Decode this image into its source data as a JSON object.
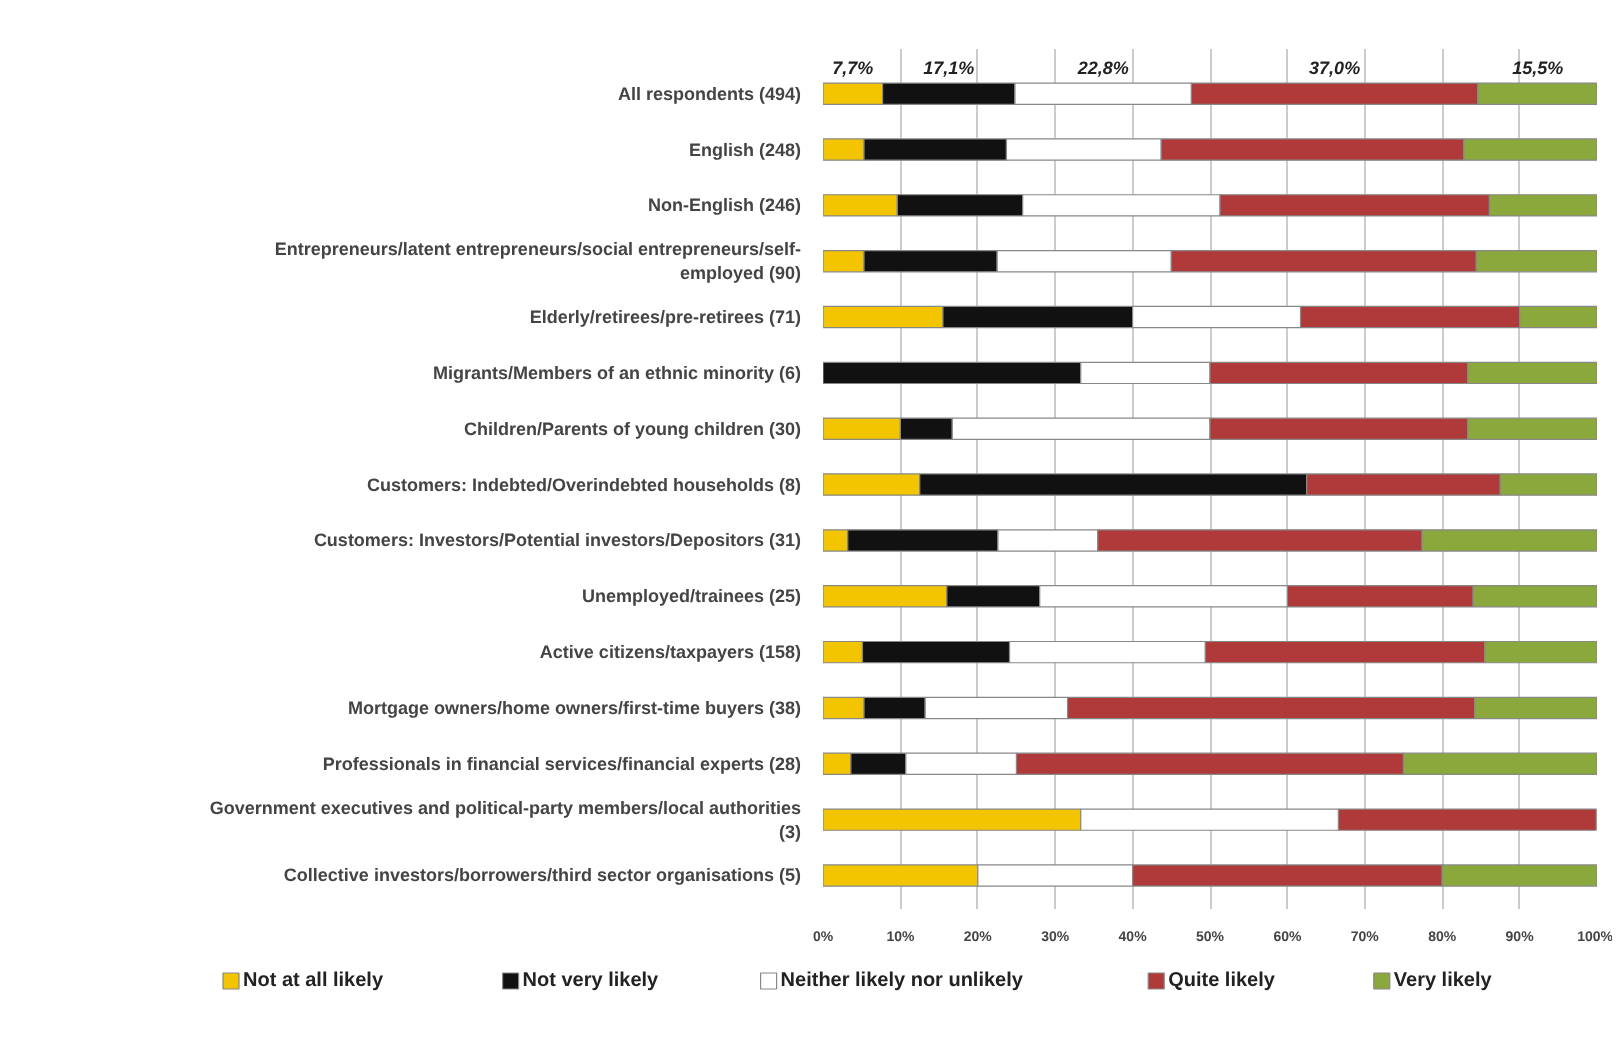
{
  "chart_data": {
    "type": "bar",
    "orientation": "horizontal",
    "stacked": true,
    "categories": [
      "All respondents (494)",
      "English (248)",
      "Non-English (246)",
      "Entrepreneurs/latent entrepreneurs/social entrepreneurs/self-employed (90)",
      "Elderly/retirees/pre-retirees (71)",
      "Migrants/Members of an ethnic minority (6)",
      "Children/Parents of young children (30)",
      "Customers: Indebted/Overindebted households (8)",
      "Customers: Investors/Potential investors/Depositors (31)",
      "Unemployed/trainees (25)",
      "Active citizens/taxpayers (158)",
      "Mortgage owners/home owners/first-time buyers (38)",
      "Professionals in financial services/financial experts (28)",
      "Government executives and political-party members/local authorities (3)",
      "Collective investors/borrowers/third sector organisations (5)"
    ],
    "series": [
      {
        "name": "Not at all likely",
        "color": "#f2c500",
        "values": [
          7.7,
          5.3,
          9.6,
          5.3,
          15.5,
          0,
          10,
          12.5,
          3.2,
          16,
          5.1,
          5.3,
          3.6,
          33.3,
          20
        ],
        "value_labels": [
          "7,7%",
          null,
          null,
          null,
          null,
          null,
          null,
          null,
          null,
          null,
          null,
          null,
          null,
          null,
          null
        ]
      },
      {
        "name": "Not very likely",
        "color": "#111111",
        "values": [
          17.1,
          18.4,
          16.2,
          17.2,
          24.5,
          33.3,
          6.7,
          50,
          19.4,
          12,
          19.0,
          7.9,
          7.1,
          0,
          0
        ],
        "value_labels": [
          "17,1%",
          null,
          null,
          null,
          null,
          null,
          null,
          null,
          null,
          null,
          null,
          null,
          null,
          null,
          null
        ]
      },
      {
        "name": "Neither likely nor unlikely",
        "color": "#ffffff",
        "values": [
          22.8,
          20.0,
          25.5,
          22.5,
          21.7,
          16.7,
          33.3,
          0,
          12.9,
          32,
          25.3,
          18.4,
          14.3,
          33.3,
          20
        ],
        "value_labels": [
          "22,8%",
          null,
          null,
          null,
          null,
          null,
          null,
          null,
          null,
          null,
          null,
          null,
          null,
          null,
          null
        ]
      },
      {
        "name": "Quite likely",
        "color": "#b03a3a",
        "values": [
          37.0,
          39.1,
          34.8,
          39.4,
          28.3,
          33.3,
          33.3,
          25,
          41.9,
          24,
          36.1,
          52.6,
          50,
          33.3,
          40
        ],
        "value_labels": [
          "37,0%",
          null,
          null,
          null,
          null,
          null,
          null,
          null,
          null,
          null,
          null,
          null,
          null,
          null,
          null
        ]
      },
      {
        "name": "Very likely",
        "color": "#8aa83c",
        "values": [
          15.5,
          17.2,
          13.9,
          15.6,
          10.0,
          16.7,
          16.7,
          12.5,
          22.6,
          16,
          14.5,
          15.8,
          25,
          0,
          20
        ],
        "value_labels": [
          "15,5%",
          null,
          null,
          null,
          null,
          null,
          null,
          null,
          null,
          null,
          null,
          null,
          null,
          null,
          null
        ]
      }
    ],
    "xlim": [
      0,
      100
    ],
    "xticks": [
      {
        "value": 0,
        "label": "0%"
      },
      {
        "value": 10,
        "label": "10%"
      },
      {
        "value": 20,
        "label": "20%"
      },
      {
        "value": 30,
        "label": "30%"
      },
      {
        "value": 40,
        "label": "40%"
      },
      {
        "value": 50,
        "label": "50%"
      },
      {
        "value": 60,
        "label": "60%"
      },
      {
        "value": 70,
        "label": "70%"
      },
      {
        "value": 80,
        "label": "80%"
      },
      {
        "value": 90,
        "label": "90%"
      },
      {
        "value": 100,
        "label": "100%"
      }
    ],
    "grid": "x",
    "legend": "bottom"
  }
}
